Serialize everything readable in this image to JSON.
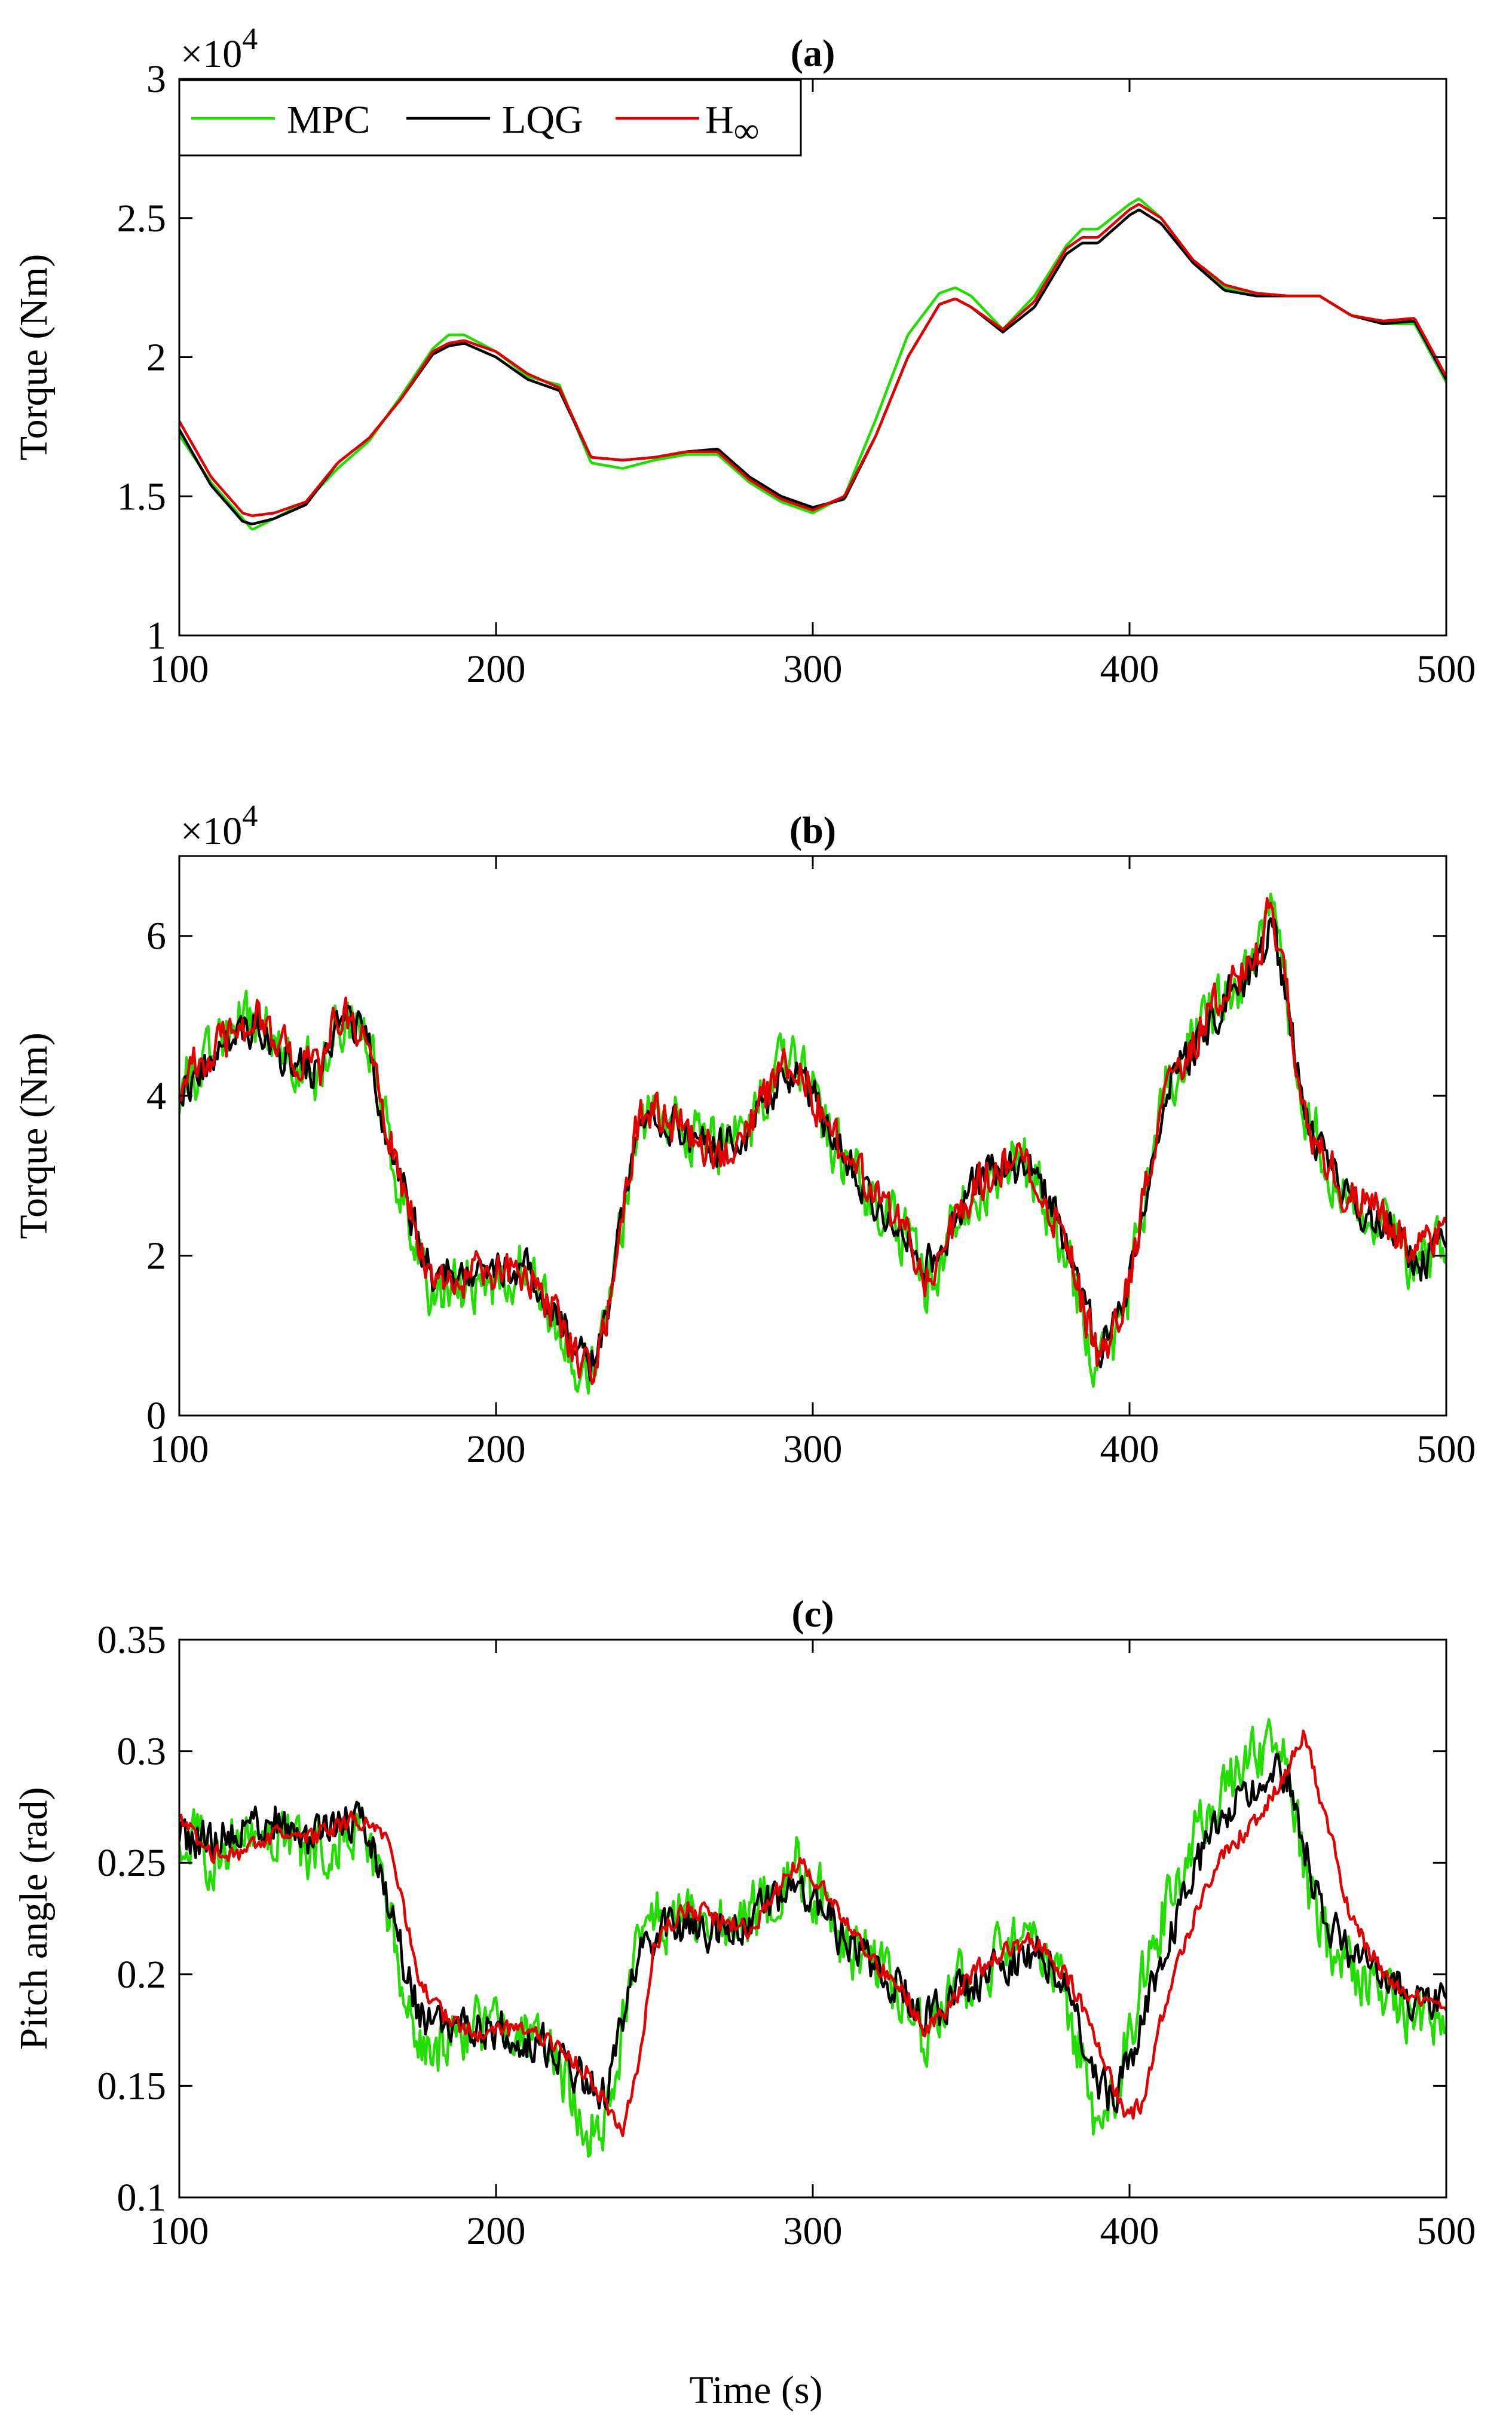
{
  "figure": {
    "xlabel": "Time (s)",
    "colors": {
      "MPC": "#22dd00",
      "LQG": "#000000",
      "Hinf": "#e00000"
    },
    "legend": {
      "placement": "top-left",
      "entries": [
        "MPC",
        "LQG",
        "H",
        "∞"
      ]
    }
  },
  "chart_data": [
    {
      "type": "line",
      "title": "(a)",
      "ylabel": "Torque (Nm)",
      "exponent_label": "×10",
      "exponent_power": "4",
      "xlim": [
        100,
        500
      ],
      "ylim": [
        1,
        3
      ],
      "xticks": [
        "100",
        "200",
        "300",
        "400",
        "500"
      ],
      "yticks": [
        "1",
        "1.5",
        "2",
        "2.5",
        "3"
      ],
      "x": [
        100,
        110,
        120,
        123,
        130,
        140,
        150,
        160,
        170,
        180,
        185,
        190,
        200,
        210,
        220,
        230,
        240,
        250,
        260,
        270,
        280,
        290,
        300,
        310,
        320,
        330,
        340,
        345,
        350,
        360,
        370,
        380,
        385,
        390,
        400,
        403,
        410,
        420,
        430,
        440,
        450,
        460,
        470,
        480,
        490,
        500
      ],
      "series": [
        {
          "name": "MPC",
          "color": "#22dd00",
          "noise": 0,
          "values": [
            1.72,
            1.55,
            1.42,
            1.38,
            1.42,
            1.48,
            1.6,
            1.7,
            1.86,
            2.03,
            2.08,
            2.08,
            2.02,
            1.93,
            1.9,
            1.62,
            1.6,
            1.63,
            1.65,
            1.65,
            1.55,
            1.48,
            1.44,
            1.5,
            1.78,
            2.08,
            2.23,
            2.25,
            2.22,
            2.1,
            2.22,
            2.4,
            2.46,
            2.46,
            2.55,
            2.57,
            2.5,
            2.35,
            2.25,
            2.22,
            2.22,
            2.22,
            2.15,
            2.12,
            2.12,
            1.91
          ]
        },
        {
          "name": "LQG",
          "color": "#000000",
          "noise": 0,
          "values": [
            1.74,
            1.54,
            1.41,
            1.4,
            1.42,
            1.47,
            1.62,
            1.71,
            1.85,
            2.01,
            2.04,
            2.05,
            2.0,
            1.92,
            1.88,
            1.64,
            1.63,
            1.64,
            1.66,
            1.67,
            1.57,
            1.5,
            1.46,
            1.49,
            1.72,
            2.0,
            2.19,
            2.21,
            2.18,
            2.09,
            2.18,
            2.37,
            2.41,
            2.41,
            2.51,
            2.53,
            2.48,
            2.34,
            2.24,
            2.22,
            2.22,
            2.22,
            2.15,
            2.12,
            2.13,
            1.92
          ]
        },
        {
          "name": "H∞",
          "color": "#e00000",
          "noise": 0,
          "values": [
            1.77,
            1.57,
            1.44,
            1.43,
            1.44,
            1.48,
            1.62,
            1.71,
            1.85,
            2.02,
            2.05,
            2.06,
            2.02,
            1.94,
            1.89,
            1.64,
            1.63,
            1.64,
            1.66,
            1.66,
            1.56,
            1.49,
            1.45,
            1.5,
            1.72,
            2.0,
            2.19,
            2.21,
            2.18,
            2.1,
            2.2,
            2.39,
            2.43,
            2.43,
            2.53,
            2.55,
            2.5,
            2.35,
            2.26,
            2.23,
            2.22,
            2.22,
            2.15,
            2.13,
            2.14,
            1.93
          ]
        }
      ]
    },
    {
      "type": "line",
      "title": "(b)",
      "ylabel": "Torque (Nm)",
      "exponent_label": "×10",
      "exponent_power": "4",
      "xlim": [
        100,
        500
      ],
      "ylim": [
        0,
        7
      ],
      "xticks": [
        "100",
        "200",
        "300",
        "400",
        "500"
      ],
      "yticks": [
        "0",
        "2",
        "4",
        "6"
      ],
      "x": [
        100,
        110,
        120,
        125,
        135,
        145,
        150,
        155,
        160,
        165,
        170,
        175,
        180,
        190,
        200,
        210,
        220,
        225,
        230,
        235,
        240,
        245,
        250,
        260,
        270,
        280,
        290,
        295,
        300,
        310,
        320,
        330,
        335,
        340,
        350,
        360,
        370,
        380,
        385,
        390,
        395,
        400,
        405,
        410,
        420,
        430,
        440,
        445,
        450,
        455,
        460,
        470,
        480,
        490,
        500
      ],
      "series": [
        {
          "name": "MPC",
          "color": "#22dd00",
          "noise": 0.55,
          "values": [
            4.1,
            4.5,
            4.9,
            5.0,
            4.4,
            4.3,
            5.0,
            5.0,
            4.6,
            3.6,
            2.9,
            2.2,
            1.5,
            1.6,
            1.6,
            1.8,
            1.1,
            0.7,
            0.4,
            1.2,
            2.5,
            3.7,
            3.9,
            3.6,
            3.3,
            3.6,
            4.3,
            4.5,
            4.0,
            3.2,
            2.7,
            2.2,
            1.6,
            2.0,
            2.7,
            3.2,
            3.0,
            2.1,
            1.3,
            0.6,
            1.0,
            1.6,
            2.8,
            4.0,
            4.7,
            5.3,
            5.7,
            6.3,
            5.2,
            3.8,
            3.4,
            2.7,
            2.5,
            1.9,
            2.1
          ]
        },
        {
          "name": "LQG",
          "color": "#000000",
          "noise": 0.35,
          "values": [
            4.1,
            4.4,
            4.8,
            4.9,
            4.4,
            4.3,
            4.9,
            4.9,
            4.6,
            3.6,
            2.9,
            2.3,
            1.7,
            1.8,
            1.9,
            1.8,
            1.3,
            0.8,
            0.6,
            1.3,
            2.5,
            3.7,
            3.8,
            3.5,
            3.3,
            3.6,
            4.2,
            4.4,
            4.0,
            3.2,
            2.7,
            2.3,
            1.8,
            2.1,
            2.8,
            3.2,
            3.0,
            2.2,
            1.5,
            0.8,
            1.1,
            1.6,
            2.7,
            3.9,
            4.6,
            5.2,
            5.6,
            6.1,
            5.2,
            3.7,
            3.3,
            2.7,
            2.4,
            1.9,
            2.1
          ]
        },
        {
          "name": "H∞",
          "color": "#e00000",
          "noise": 0.38,
          "values": [
            4.2,
            4.5,
            4.9,
            5.0,
            4.5,
            4.3,
            5.0,
            5.0,
            4.6,
            3.6,
            3.0,
            2.2,
            1.6,
            1.7,
            1.8,
            1.8,
            1.2,
            0.8,
            0.6,
            1.3,
            2.5,
            3.7,
            3.8,
            3.6,
            3.3,
            3.6,
            4.3,
            4.4,
            4.0,
            3.2,
            2.7,
            2.3,
            1.7,
            2.1,
            2.8,
            3.2,
            3.0,
            2.2,
            1.4,
            0.7,
            1.1,
            1.6,
            2.8,
            4.0,
            4.7,
            5.3,
            5.7,
            6.4,
            5.2,
            3.7,
            3.4,
            2.7,
            2.5,
            2.0,
            2.3
          ]
        }
      ]
    },
    {
      "type": "line",
      "title": "(c)",
      "ylabel": "Pitch angle (rad)",
      "xlim": [
        100,
        500
      ],
      "ylim": [
        0.1,
        0.35
      ],
      "xticks": [
        "100",
        "200",
        "300",
        "400",
        "500"
      ],
      "yticks": [
        "0.1",
        "0.15",
        "0.2",
        "0.25",
        "0.3",
        "0.35"
      ],
      "x": [
        100,
        110,
        120,
        130,
        140,
        150,
        155,
        160,
        165,
        170,
        175,
        180,
        190,
        200,
        210,
        220,
        230,
        235,
        240,
        245,
        250,
        260,
        270,
        280,
        290,
        295,
        300,
        310,
        320,
        330,
        335,
        340,
        350,
        360,
        370,
        380,
        385,
        390,
        395,
        400,
        405,
        410,
        420,
        430,
        440,
        445,
        450,
        455,
        460,
        470,
        480,
        490,
        500
      ],
      "series": [
        {
          "name": "MPC",
          "color": "#22dd00",
          "noise": 0.02,
          "values": [
            0.26,
            0.255,
            0.26,
            0.265,
            0.255,
            0.262,
            0.265,
            0.26,
            0.235,
            0.195,
            0.17,
            0.165,
            0.175,
            0.175,
            0.17,
            0.16,
            0.13,
            0.14,
            0.175,
            0.22,
            0.225,
            0.225,
            0.22,
            0.225,
            0.24,
            0.25,
            0.24,
            0.215,
            0.205,
            0.185,
            0.17,
            0.185,
            0.2,
            0.21,
            0.21,
            0.19,
            0.16,
            0.13,
            0.145,
            0.175,
            0.205,
            0.225,
            0.26,
            0.285,
            0.295,
            0.3,
            0.29,
            0.25,
            0.22,
            0.2,
            0.19,
            0.18,
            0.175
          ]
        },
        {
          "name": "LQG",
          "color": "#000000",
          "noise": 0.013,
          "values": [
            0.26,
            0.26,
            0.265,
            0.27,
            0.26,
            0.265,
            0.27,
            0.265,
            0.24,
            0.21,
            0.185,
            0.175,
            0.175,
            0.175,
            0.17,
            0.165,
            0.15,
            0.145,
            0.18,
            0.21,
            0.22,
            0.22,
            0.22,
            0.225,
            0.235,
            0.24,
            0.235,
            0.215,
            0.205,
            0.19,
            0.18,
            0.185,
            0.195,
            0.205,
            0.21,
            0.2,
            0.175,
            0.15,
            0.145,
            0.16,
            0.185,
            0.21,
            0.245,
            0.27,
            0.285,
            0.29,
            0.29,
            0.26,
            0.23,
            0.21,
            0.2,
            0.19,
            0.185
          ]
        },
        {
          "name": "H∞",
          "color": "#e00000",
          "noise": 0.006,
          "values": [
            0.27,
            0.255,
            0.255,
            0.262,
            0.26,
            0.265,
            0.27,
            0.27,
            0.26,
            0.235,
            0.2,
            0.185,
            0.175,
            0.175,
            0.175,
            0.168,
            0.155,
            0.14,
            0.13,
            0.16,
            0.215,
            0.23,
            0.225,
            0.22,
            0.24,
            0.25,
            0.245,
            0.225,
            0.205,
            0.19,
            0.175,
            0.18,
            0.2,
            0.21,
            0.215,
            0.2,
            0.185,
            0.17,
            0.15,
            0.135,
            0.145,
            0.18,
            0.225,
            0.255,
            0.27,
            0.28,
            0.29,
            0.31,
            0.28,
            0.225,
            0.2,
            0.19,
            0.18
          ]
        }
      ]
    }
  ]
}
